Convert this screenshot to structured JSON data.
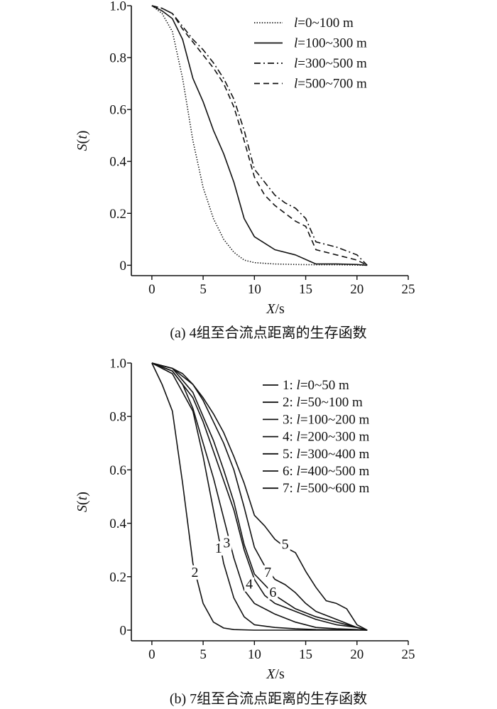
{
  "chart_data": [
    {
      "type": "line",
      "caption": "(a) 4组至合流点距离的生存函数",
      "xlabel": "X/s",
      "ylabel": "S(t)",
      "xlim": [
        -2,
        25
      ],
      "ylim": [
        -0.04,
        1.0
      ],
      "xticks": [
        "0",
        "5",
        "10",
        "15",
        "20",
        "25"
      ],
      "yticks": [
        "0",
        "0.2",
        "0.4",
        "0.6",
        "0.8",
        "1.0"
      ],
      "legend_position": "top-right",
      "series": [
        {
          "name": "l=0~100 m",
          "dash": "dotted",
          "x": [
            0,
            1,
            2,
            3,
            4,
            5,
            6,
            7,
            8,
            9,
            10,
            12,
            14,
            16,
            18,
            21
          ],
          "y": [
            1.0,
            0.97,
            0.9,
            0.72,
            0.48,
            0.3,
            0.18,
            0.1,
            0.05,
            0.02,
            0.01,
            0.005,
            0.003,
            0.002,
            0.002,
            0.0
          ]
        },
        {
          "name": "l=100~300 m",
          "dash": "solid",
          "x": [
            0,
            1,
            2,
            3,
            4,
            5,
            6,
            7,
            8,
            9,
            10,
            12,
            14,
            16,
            18,
            20,
            21
          ],
          "y": [
            1.0,
            0.98,
            0.95,
            0.87,
            0.72,
            0.63,
            0.52,
            0.43,
            0.32,
            0.18,
            0.11,
            0.06,
            0.04,
            0.005,
            0.005,
            0.003,
            0.0
          ]
        },
        {
          "name": "l=300~500 m",
          "dash": "dashdot",
          "x": [
            0,
            1,
            2,
            3,
            4,
            5,
            6,
            7,
            8,
            9,
            10,
            11,
            12,
            13,
            14,
            15,
            16,
            18,
            20,
            21
          ],
          "y": [
            1.0,
            0.99,
            0.97,
            0.92,
            0.87,
            0.83,
            0.78,
            0.72,
            0.64,
            0.52,
            0.37,
            0.32,
            0.27,
            0.24,
            0.22,
            0.18,
            0.09,
            0.07,
            0.04,
            0.0
          ]
        },
        {
          "name": "l=500~700 m",
          "dash": "dashed",
          "x": [
            0,
            1,
            2,
            3,
            4,
            5,
            6,
            7,
            8,
            9,
            10,
            11,
            12,
            13,
            14,
            15,
            16,
            18,
            20,
            21
          ],
          "y": [
            1.0,
            0.99,
            0.97,
            0.91,
            0.86,
            0.81,
            0.76,
            0.7,
            0.61,
            0.48,
            0.34,
            0.27,
            0.23,
            0.2,
            0.17,
            0.15,
            0.06,
            0.04,
            0.02,
            0.0
          ]
        }
      ]
    },
    {
      "type": "line",
      "caption": "(b) 7组至合流点距离的生存函数",
      "xlabel": "X/s",
      "ylabel": "S(t)",
      "xlim": [
        -2,
        25
      ],
      "ylim": [
        -0.04,
        1.0
      ],
      "xticks": [
        "0",
        "5",
        "10",
        "15",
        "20",
        "25"
      ],
      "yticks": [
        "0",
        "0.2",
        "0.4",
        "0.6",
        "0.8",
        "1.0"
      ],
      "legend_position": "top-right",
      "series": [
        {
          "name": "1: l=0~50 m",
          "label": "1",
          "label_at": [
            6.5,
            0.29
          ],
          "x": [
            0,
            2,
            4,
            5,
            6,
            7,
            8,
            9,
            10,
            12,
            14,
            16,
            18,
            20,
            21
          ],
          "y": [
            1.0,
            0.96,
            0.82,
            0.65,
            0.45,
            0.25,
            0.12,
            0.05,
            0.02,
            0.01,
            0.005,
            0.002,
            0.001,
            0.001,
            0.0
          ]
        },
        {
          "name": "2: l=50~100 m",
          "label": "2",
          "label_at": [
            4.2,
            0.2
          ],
          "x": [
            0,
            1,
            2,
            3,
            4,
            5,
            6,
            7,
            8,
            10,
            12,
            14,
            16,
            21
          ],
          "y": [
            1.0,
            0.92,
            0.82,
            0.55,
            0.25,
            0.1,
            0.03,
            0.008,
            0.002,
            0.0,
            0.0,
            0.0,
            0.0,
            0.0
          ]
        },
        {
          "name": "3: l=100~200 m",
          "label": "3",
          "label_at": [
            7.3,
            0.31
          ],
          "x": [
            0,
            2,
            3,
            4,
            5,
            6,
            7,
            8,
            9,
            10,
            12,
            14,
            16,
            18,
            20,
            21
          ],
          "y": [
            1.0,
            0.97,
            0.92,
            0.83,
            0.7,
            0.57,
            0.42,
            0.27,
            0.15,
            0.1,
            0.06,
            0.03,
            0.01,
            0.005,
            0.002,
            0.0
          ]
        },
        {
          "name": "4: l=200~300 m",
          "label": "4",
          "label_at": [
            9.5,
            0.155
          ],
          "x": [
            0,
            2,
            4,
            5,
            6,
            7,
            8,
            9,
            10,
            11,
            12,
            14,
            16,
            18,
            20,
            21
          ],
          "y": [
            1.0,
            0.97,
            0.87,
            0.78,
            0.67,
            0.56,
            0.45,
            0.3,
            0.19,
            0.13,
            0.1,
            0.07,
            0.04,
            0.02,
            0.01,
            0.0
          ]
        },
        {
          "name": "5: l=300~400 m",
          "label": "5",
          "label_at": [
            13,
            0.305
          ],
          "x": [
            0,
            2,
            3,
            4,
            5,
            6,
            7,
            8,
            9,
            10,
            11,
            12,
            13,
            14,
            15,
            16,
            17,
            18,
            19,
            20,
            21
          ],
          "y": [
            1.0,
            0.98,
            0.96,
            0.92,
            0.87,
            0.81,
            0.74,
            0.65,
            0.55,
            0.43,
            0.39,
            0.34,
            0.31,
            0.29,
            0.22,
            0.16,
            0.11,
            0.1,
            0.08,
            0.02,
            0.0
          ]
        },
        {
          "name": "6: l=400~500 m",
          "label": "6",
          "label_at": [
            11.8,
            0.125
          ],
          "x": [
            0,
            2,
            4,
            5,
            6,
            7,
            8,
            9,
            10,
            12,
            14,
            16,
            18,
            20,
            21
          ],
          "y": [
            1.0,
            0.98,
            0.89,
            0.8,
            0.71,
            0.6,
            0.48,
            0.32,
            0.21,
            0.13,
            0.08,
            0.05,
            0.03,
            0.01,
            0.0
          ]
        },
        {
          "name": "7: l=500~600 m",
          "label": "7",
          "label_at": [
            11.3,
            0.2
          ],
          "x": [
            0,
            2,
            4,
            5,
            6,
            7,
            8,
            9,
            10,
            11,
            12,
            13,
            14,
            15,
            16,
            18,
            20,
            21
          ],
          "y": [
            1.0,
            0.98,
            0.92,
            0.86,
            0.78,
            0.7,
            0.6,
            0.46,
            0.31,
            0.24,
            0.19,
            0.17,
            0.14,
            0.1,
            0.07,
            0.04,
            0.01,
            0.0
          ]
        }
      ]
    }
  ]
}
